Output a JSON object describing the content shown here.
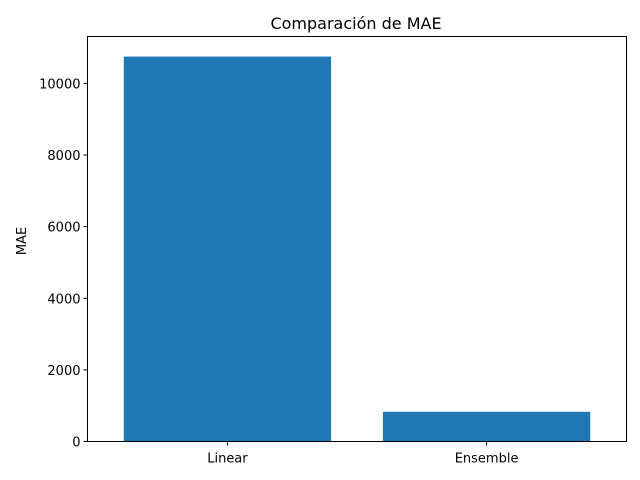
{
  "chart_data": {
    "type": "bar",
    "title": "Comparación de MAE",
    "xlabel": "",
    "ylabel": "MAE",
    "categories": [
      "Linear",
      "Ensemble"
    ],
    "values": [
      10750,
      830
    ],
    "ylim": [
      0,
      11310
    ],
    "yticks": [
      0,
      2000,
      4000,
      6000,
      8000,
      10000
    ],
    "ytick_labels": [
      "0",
      "2000",
      "4000",
      "6000",
      "8000",
      "10000"
    ],
    "bar_color": "#1f77b4",
    "grid": false,
    "legend": "none"
  }
}
